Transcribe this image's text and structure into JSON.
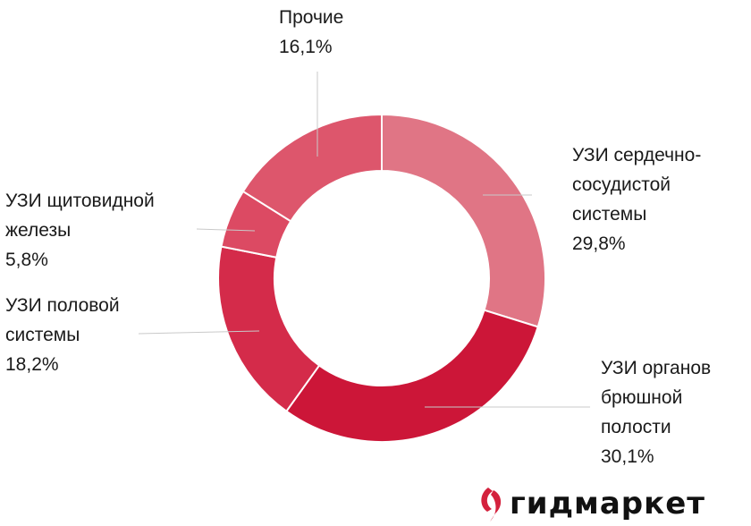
{
  "chart_data": {
    "type": "pie",
    "variant": "donut",
    "title": "",
    "categories": [
      "УЗИ сердечно-сосудистой системы",
      "УЗИ органов брюшной полости",
      "УЗИ половой системы",
      "УЗИ щитовидной железы",
      "Прочие"
    ],
    "values": [
      29.8,
      30.1,
      18.2,
      5.8,
      16.1
    ],
    "value_labels": [
      "29,8%",
      "30,1%",
      "18,2%",
      "5,8%",
      "16,1%"
    ],
    "label_lines": [
      [
        "УЗИ сердечно-",
        "сосудистой",
        "системы"
      ],
      [
        "УЗИ органов",
        "брюшной",
        "полости"
      ],
      [
        "УЗИ половой",
        "системы"
      ],
      [
        "УЗИ щитовидной",
        "железы"
      ],
      [
        "Прочие"
      ]
    ],
    "colors": [
      "#e07585",
      "#cc1638",
      "#d42b4a",
      "#dc4a63",
      "#dd566c"
    ],
    "legend": "none"
  },
  "brand": {
    "name": "гидмаркет",
    "accent": "#d4213d",
    "icon": "brand-logo-icon"
  }
}
